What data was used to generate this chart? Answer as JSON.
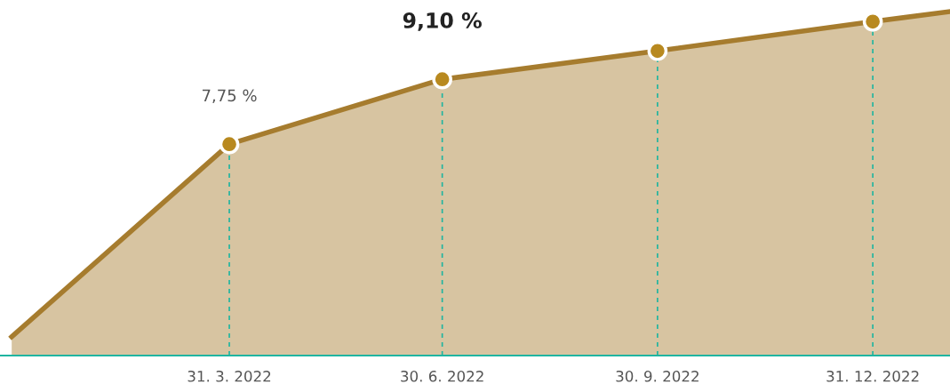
{
  "chart_data": {
    "type": "area",
    "x": [
      "2021-12-28",
      "2022-03-31",
      "2022-06-30",
      "2022-09-30",
      "2022-12-31",
      "2023-02-02"
    ],
    "series": [
      {
        "marker": "none",
        "color": "#a67c2e",
        "values": [
          3.74,
          7.75,
          9.1,
          9.69,
          10.3,
          10.51
        ],
        "value_labels": [
          null,
          "7,75 %",
          "9,10 %",
          null,
          null,
          null
        ]
      },
      {
        "type": "scatter",
        "marker": "circle",
        "color": "#b8891f",
        "x": [
          "2022-03-31",
          "2022-06-30",
          "2022-09-30",
          "2022-12-31"
        ],
        "values": [
          7.75,
          9.1,
          9.69,
          10.3
        ]
      }
    ],
    "xlim": [
      "2021-12-23",
      "2023-02-02"
    ],
    "ylim": [
      3.35,
      10.75
    ],
    "xticks": [
      {
        "value": "2022-03-31",
        "label": "31. 3. 2022"
      },
      {
        "value": "2022-06-30",
        "label": "30. 6. 2022"
      },
      {
        "value": "2022-09-30",
        "label": "30. 9. 2022"
      },
      {
        "value": "2022-12-31",
        "label": "31. 12. 2022"
      }
    ],
    "tick_labels": "x",
    "grid": "x",
    "line_style": "solid"
  }
}
